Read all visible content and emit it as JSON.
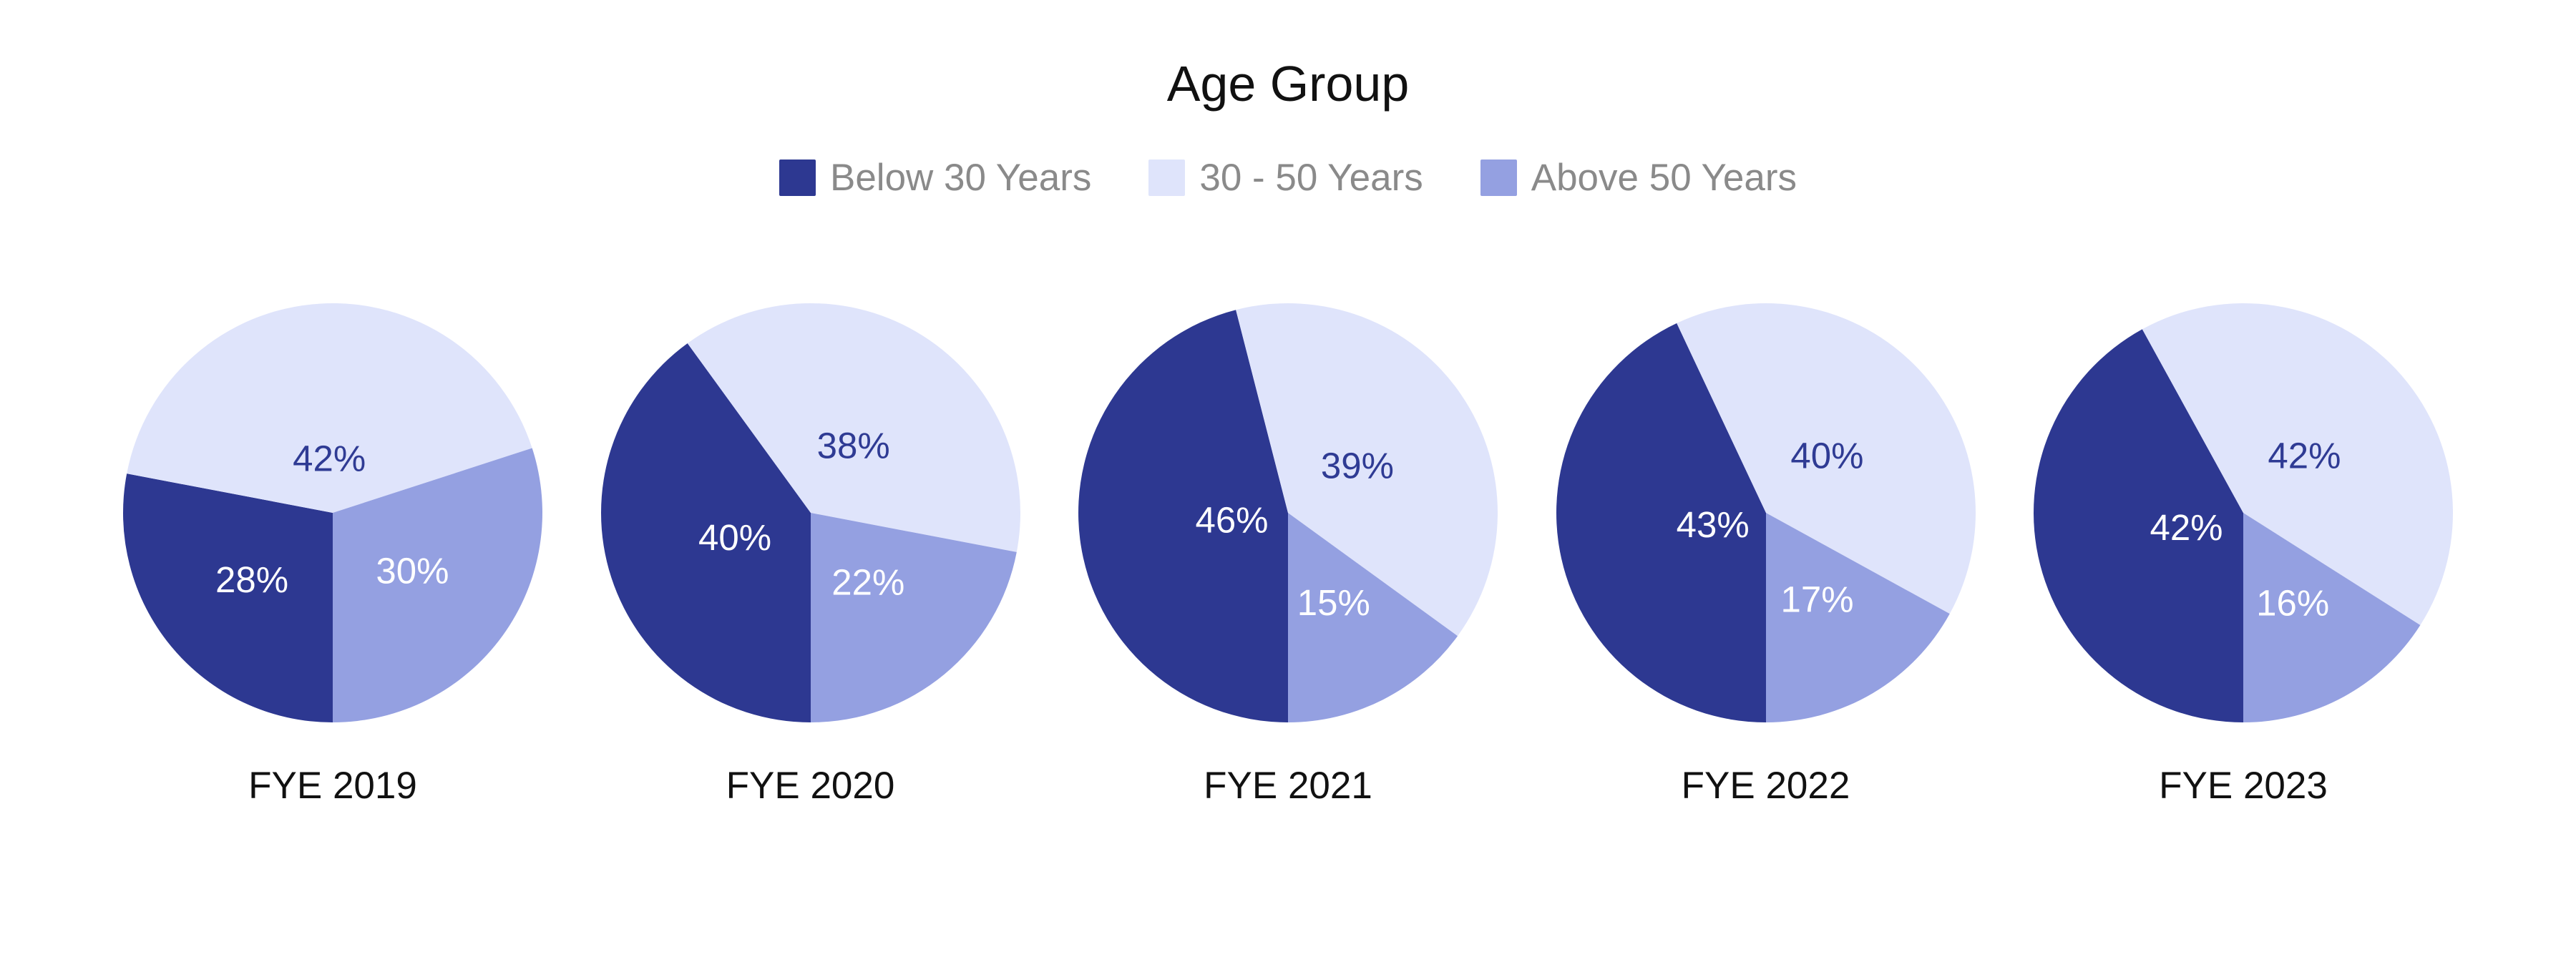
{
  "page": {
    "background": "#FFFFFF"
  },
  "chart_data": {
    "type": "pie",
    "title": "Age Group",
    "legend_entries": [
      "Below 30 Years",
      "30 - 50 Years",
      "Above 50 Years"
    ],
    "legend_position": "top-center",
    "series_colors": [
      "#2D3891",
      "#DFE4FB",
      "#94A0E1"
    ],
    "inside_label_text_colors": [
      "#FFFFFF",
      "#2F3B94",
      "#FFFFFF"
    ],
    "value_suffix": "%",
    "start_angle_deg": 180,
    "direction": "clockwise",
    "pies": [
      {
        "label": "FYE 2019",
        "values": [
          28,
          42,
          30
        ]
      },
      {
        "label": "FYE 2020",
        "values": [
          40,
          38,
          22
        ]
      },
      {
        "label": "FYE 2021",
        "values": [
          46,
          39,
          15
        ]
      },
      {
        "label": "FYE 2022",
        "values": [
          43,
          40,
          17
        ]
      },
      {
        "label": "FYE 2023",
        "values": [
          42,
          42,
          16
        ]
      }
    ]
  },
  "colors": {
    "background": "#FFFFFF",
    "title_text": "#111111",
    "legend_text": "#8A8A8A",
    "caption_text": "#111111"
  }
}
